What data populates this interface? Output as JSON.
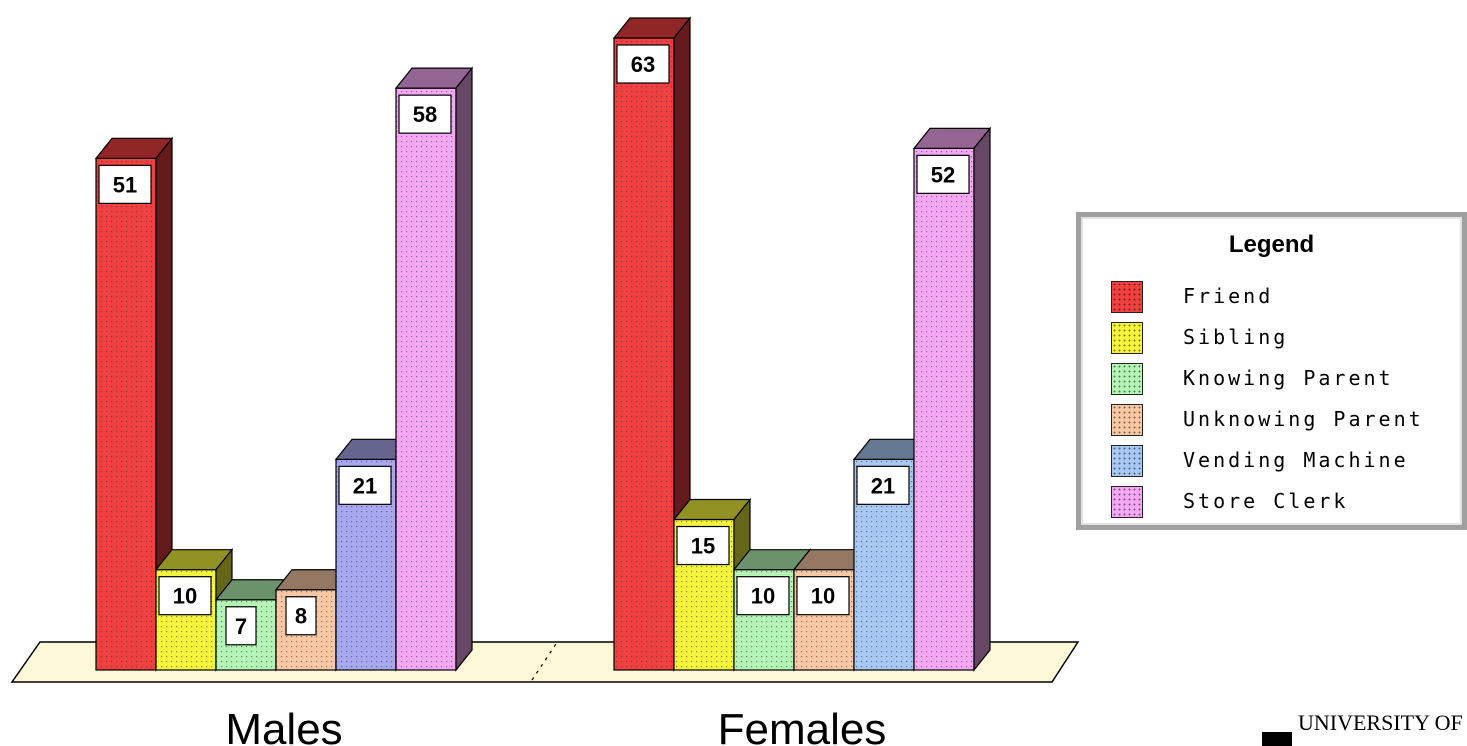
{
  "chart_data": {
    "type": "bar",
    "categories": [
      "Males",
      "Females"
    ],
    "series": [
      {
        "name": "Friend",
        "values": [
          51,
          63
        ],
        "color": "#f04040"
      },
      {
        "name": "Sibling",
        "values": [
          10,
          15
        ],
        "color": "#f4f43c"
      },
      {
        "name": "Knowing Parent",
        "values": [
          7,
          10
        ],
        "color": "#b4f4b4"
      },
      {
        "name": "Unknowing Parent",
        "values": [
          8,
          10
        ],
        "color": "#f8c8a4"
      },
      {
        "name": "Vending Machine",
        "values": [
          21,
          21
        ],
        "color": "#a8c8f4"
      },
      {
        "name": "Store Clerk",
        "values": [
          58,
          52
        ],
        "color": "#f4a8f4"
      }
    ],
    "ylim": [
      0,
      63
    ],
    "grid": false,
    "legend": "right",
    "bar_value_colors": [
      [
        "#f04040",
        "#f4f43c",
        "#b4f4b4",
        "#f8c8a4",
        "#a8a8f0",
        "#f4a8f4"
      ],
      [
        "#f04040",
        "#f4f43c",
        "#b4f4b4",
        "#f8c8a4",
        "#a8c8f4",
        "#f4a8f4"
      ]
    ]
  },
  "legend": {
    "title": "Legend"
  },
  "logo": {
    "text": "UNIVERSITY OF"
  }
}
